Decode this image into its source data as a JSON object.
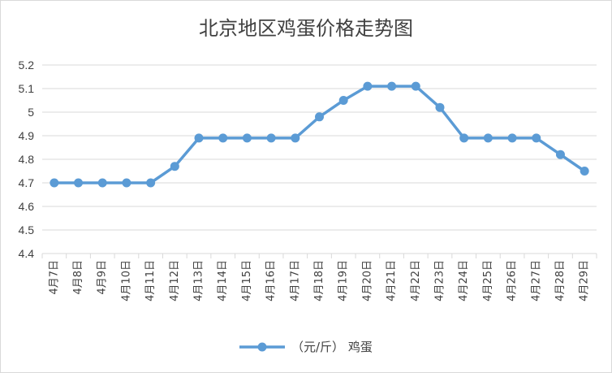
{
  "chart_data": {
    "type": "line",
    "title": "北京地区鸡蛋价格走势图",
    "xlabel": "",
    "ylabel": "",
    "categories": [
      "4月7日",
      "4月8日",
      "4月9日",
      "4月10日",
      "4月11日",
      "4月12日",
      "4月13日",
      "4月14日",
      "4月15日",
      "4月16日",
      "4月17日",
      "4月18日",
      "4月19日",
      "4月20日",
      "4月21日",
      "4月22日",
      "4月23日",
      "4月24日",
      "4月25日",
      "4月26日",
      "4月27日",
      "4月28日",
      "4月29日"
    ],
    "series": [
      {
        "name": "（元/斤） 鸡蛋",
        "values": [
          4.7,
          4.7,
          4.7,
          4.7,
          4.7,
          4.77,
          4.89,
          4.89,
          4.89,
          4.89,
          4.89,
          4.98,
          5.05,
          5.11,
          5.11,
          5.11,
          5.02,
          4.89,
          4.89,
          4.89,
          4.89,
          4.82,
          4.75
        ]
      }
    ],
    "ylim": [
      4.4,
      5.2
    ],
    "yticks": [
      "4.4",
      "4.5",
      "4.6",
      "4.7",
      "4.8",
      "4.9",
      "5",
      "5.1",
      "5.2"
    ],
    "grid": true,
    "legend_position": "bottom",
    "colors": {
      "series": "#5B9BD5",
      "grid": "#D9D9D9",
      "text": "#404040"
    }
  }
}
